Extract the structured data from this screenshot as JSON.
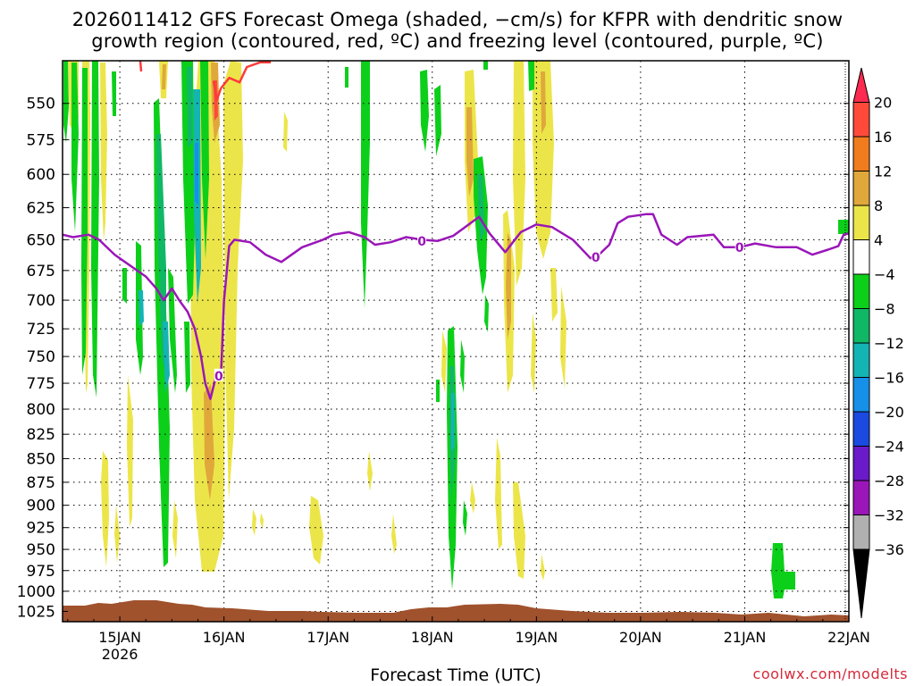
{
  "title_line1": "2026011412 GFS Forecast Omega (shaded, −cm/s) for KFPR with dendritic snow",
  "title_line2": "growth region (contoured, red, ºC) and freezing level (contoured, purple, ºC)",
  "credit": "coolwx.com/modelts",
  "chart_data": {
    "type": "heatmap",
    "xlabel": "Forecast Time (UTC)",
    "ylabel": "",
    "x_ticks": [
      {
        "label": "15JAN",
        "sublabel": "2026",
        "day": 15
      },
      {
        "label": "16JAN",
        "sublabel": "",
        "day": 16
      },
      {
        "label": "17JAN",
        "sublabel": "",
        "day": 17
      },
      {
        "label": "18JAN",
        "sublabel": "",
        "day": 18
      },
      {
        "label": "19JAN",
        "sublabel": "",
        "day": 19
      },
      {
        "label": "20JAN",
        "sublabel": "",
        "day": 20
      },
      {
        "label": "21JAN",
        "sublabel": "",
        "day": 21
      },
      {
        "label": "22JAN",
        "sublabel": "",
        "day": 22
      }
    ],
    "xlim": [
      14.45,
      22.0
    ],
    "y_ticks": [
      550,
      575,
      600,
      625,
      650,
      675,
      700,
      725,
      750,
      775,
      800,
      825,
      850,
      875,
      900,
      925,
      950,
      975,
      1000,
      1025
    ],
    "ylim": [
      522,
      1038
    ],
    "y_scale": "log",
    "y_inverted": true,
    "grid": true,
    "colorbar": {
      "labels": [
        "20",
        "16",
        "12",
        "8",
        "4",
        "−4",
        "−8",
        "−12",
        "−16",
        "−20",
        "−24",
        "−28",
        "−32",
        "−36"
      ],
      "colors": [
        "#ff2a4f",
        "#ff4a3a",
        "#f07c1e",
        "#e0a83a",
        "#ece54a",
        "#ffffff",
        "#0ccf1a",
        "#10b866",
        "#14b4b4",
        "#1690e8",
        "#1a4adf",
        "#6a1ac8",
        "#9a16b8",
        "#b0b0b0",
        "#000000"
      ]
    },
    "freezing_level": {
      "name": "0",
      "color": "#9a16b8",
      "points": [
        [
          14.45,
          646
        ],
        [
          14.55,
          648
        ],
        [
          14.7,
          646
        ],
        [
          14.8,
          650
        ],
        [
          14.95,
          662
        ],
        [
          15.05,
          668
        ],
        [
          15.15,
          674
        ],
        [
          15.25,
          680
        ],
        [
          15.35,
          690
        ],
        [
          15.42,
          700
        ],
        [
          15.5,
          690
        ],
        [
          15.57,
          700
        ],
        [
          15.65,
          710
        ],
        [
          15.72,
          725
        ],
        [
          15.78,
          750
        ],
        [
          15.82,
          775
        ],
        [
          15.87,
          790
        ],
        [
          15.92,
          770
        ],
        [
          15.97,
          770
        ],
        [
          16.0,
          700
        ],
        [
          16.05,
          655
        ],
        [
          16.1,
          650
        ],
        [
          16.25,
          652
        ],
        [
          16.4,
          662
        ],
        [
          16.55,
          668
        ],
        [
          16.75,
          656
        ],
        [
          16.95,
          650
        ],
        [
          17.05,
          646
        ],
        [
          17.2,
          644
        ],
        [
          17.35,
          648
        ],
        [
          17.45,
          654
        ],
        [
          17.6,
          652
        ],
        [
          17.75,
          648
        ],
        [
          17.9,
          650
        ],
        [
          18.05,
          651
        ],
        [
          18.2,
          647
        ],
        [
          18.35,
          638
        ],
        [
          18.45,
          632
        ],
        [
          18.55,
          645
        ],
        [
          18.7,
          660
        ],
        [
          18.85,
          644
        ],
        [
          19.0,
          638
        ],
        [
          19.15,
          640
        ],
        [
          19.35,
          650
        ],
        [
          19.52,
          665
        ],
        [
          19.6,
          662
        ],
        [
          19.7,
          654
        ],
        [
          19.78,
          637
        ],
        [
          19.88,
          632
        ],
        [
          20.05,
          630
        ],
        [
          20.12,
          630
        ],
        [
          20.2,
          646
        ],
        [
          20.35,
          654
        ],
        [
          20.45,
          648
        ],
        [
          20.7,
          646
        ],
        [
          20.8,
          656
        ],
        [
          20.95,
          656
        ],
        [
          21.1,
          653
        ],
        [
          21.3,
          656
        ],
        [
          21.5,
          656
        ],
        [
          21.65,
          662
        ],
        [
          21.8,
          658
        ],
        [
          21.9,
          655
        ],
        [
          21.95,
          646
        ],
        [
          22.0,
          645
        ]
      ],
      "labels": [
        [
          15.95,
          768
        ],
        [
          17.9,
          651
        ],
        [
          19.57,
          664
        ],
        [
          20.95,
          656
        ]
      ]
    },
    "dendritic_growth_region": {
      "color": "#ff3a3a",
      "points": [
        [
          15.9,
          535
        ],
        [
          15.93,
          548
        ],
        [
          15.97,
          540
        ],
        [
          16.05,
          533
        ],
        [
          16.15,
          536
        ],
        [
          16.22,
          526
        ],
        [
          16.35,
          523
        ],
        [
          16.45,
          523
        ]
      ]
    }
  }
}
